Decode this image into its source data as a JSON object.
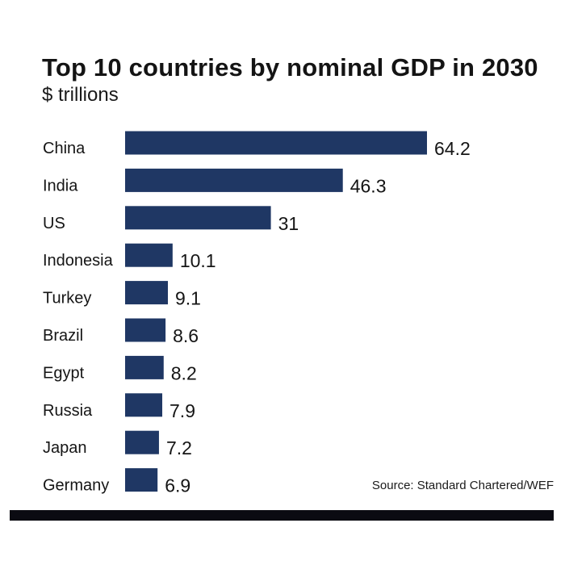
{
  "chart_data": {
    "type": "bar",
    "orientation": "horizontal",
    "title": "Top 10 countries by nominal GDP in 2030",
    "subtitle": "$ trillions",
    "categories": [
      "China",
      "India",
      "US",
      "Indonesia",
      "Turkey",
      "Brazil",
      "Egypt",
      "Russia",
      "Japan",
      "Germany"
    ],
    "values": [
      64.2,
      46.3,
      31,
      10.1,
      9.1,
      8.6,
      8.2,
      7.9,
      7.2,
      6.9
    ],
    "value_labels": [
      "64.2",
      "46.3",
      "31",
      "10.1",
      "9.1",
      "8.6",
      "8.2",
      "7.9",
      "7.2",
      "6.9"
    ],
    "xlim": [
      0,
      64.2
    ],
    "xlabel": "",
    "ylabel": "",
    "grid": false,
    "bar_color": "#1f3764"
  },
  "source": "Source: Standard Chartered/WEF"
}
